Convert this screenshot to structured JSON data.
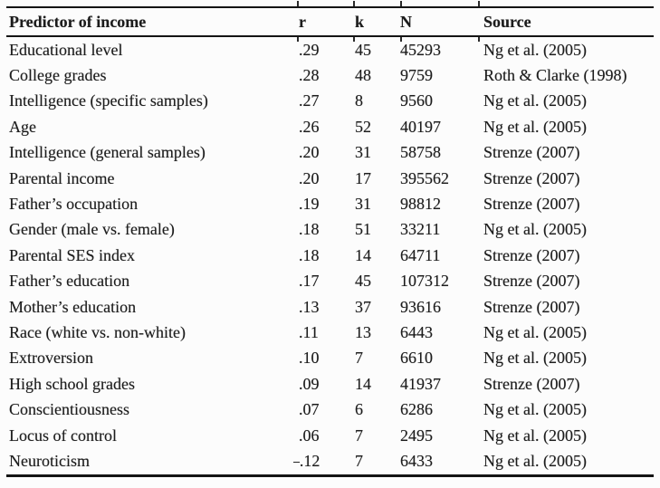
{
  "page": {
    "background": "#fcfcfc",
    "text_color": "#1c1c1c",
    "rule_color": "#141414"
  },
  "table": {
    "headers": {
      "predictor": "Predictor of income",
      "r": "r",
      "k": "k",
      "n": "N",
      "source": "Source"
    },
    "rows": [
      {
        "predictor": "Educational level",
        "r": ".29",
        "k": "45",
        "n": "45293",
        "source": "Ng et al. (2005)"
      },
      {
        "predictor": "College grades",
        "r": ".28",
        "k": "48",
        "n": "9759",
        "source": "Roth & Clarke (1998)"
      },
      {
        "predictor": "Intelligence (specific samples)",
        "r": ".27",
        "k": "8",
        "n": "9560",
        "source": "Ng et al. (2005)"
      },
      {
        "predictor": "Age",
        "r": ".26",
        "k": "52",
        "n": "40197",
        "source": "Ng et al. (2005)"
      },
      {
        "predictor": "Intelligence (general samples)",
        "r": ".20",
        "k": "31",
        "n": "58758",
        "source": "Strenze (2007)"
      },
      {
        "predictor": "Parental income",
        "r": ".20",
        "k": "17",
        "n": "395562",
        "source": "Strenze (2007)"
      },
      {
        "predictor": "Father’s occupation",
        "r": ".19",
        "k": "31",
        "n": "98812",
        "source": "Strenze (2007)"
      },
      {
        "predictor": "Gender (male vs. female)",
        "r": ".18",
        "k": "51",
        "n": "33211",
        "source": "Ng et al. (2005)"
      },
      {
        "predictor": "Parental SES index",
        "r": ".18",
        "k": "14",
        "n": "64711",
        "source": "Strenze (2007)"
      },
      {
        "predictor": "Father’s education",
        "r": ".17",
        "k": "45",
        "n": "107312",
        "source": "Strenze (2007)"
      },
      {
        "predictor": "Mother’s education",
        "r": ".13",
        "k": "37",
        "n": "93616",
        "source": "Strenze (2007)"
      },
      {
        "predictor": "Race (white vs. non-white)",
        "r": ".11",
        "k": "13",
        "n": "6443",
        "source": "Ng et al. (2005)"
      },
      {
        "predictor": "Extroversion",
        "r": ".10",
        "k": "7",
        "n": "6610",
        "source": "Ng et al. (2005)"
      },
      {
        "predictor": "High school grades",
        "r": ".09",
        "k": "14",
        "n": "41937",
        "source": "Strenze (2007)"
      },
      {
        "predictor": "Conscientiousness",
        "r": ".07",
        "k": "6",
        "n": "6286",
        "source": "Ng et al. (2005)"
      },
      {
        "predictor": "Locus of control",
        "r": ".06",
        "k": "7",
        "n": "2495",
        "source": "Ng et al. (2005)"
      },
      {
        "predictor": "Neuroticism",
        "r": "–.12",
        "k": "7",
        "n": "6433",
        "source": "Ng et al. (2005)"
      }
    ]
  }
}
